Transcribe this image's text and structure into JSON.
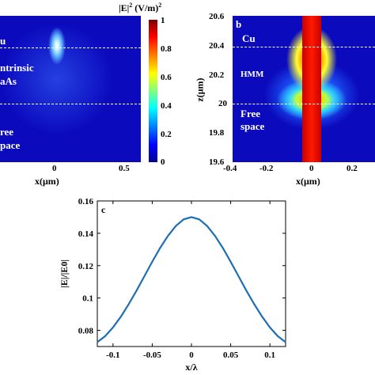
{
  "colorbar": {
    "title_main": "|E|",
    "title_sup": "2",
    "title_unit": " (V/m)",
    "title_unit_sup": "2",
    "ticks": [
      "1",
      "0.8",
      "0.6",
      "0.4",
      "0.2",
      "0"
    ],
    "colormap": "jet"
  },
  "panel_a": {
    "region_labels": [
      "u",
      "ntrinsic",
      "aAs",
      "ree",
      "pace"
    ],
    "x_ticks": [
      "0",
      "0.5"
    ],
    "xlabel": "x(μm)"
  },
  "panel_b": {
    "letter": "b",
    "region_labels": [
      "Cu",
      "HMM",
      "Free",
      "space"
    ],
    "y_ticks": [
      "20.6",
      "20.4",
      "20.2",
      "20",
      "19.8",
      "19.6"
    ],
    "x_ticks": [
      "-0.4",
      "-0.2",
      "0",
      "0.2"
    ],
    "ylabel": "z(μm)",
    "xlabel": "x(μm)"
  },
  "chart_data": [
    {
      "type": "line",
      "panel": "c",
      "xlabel": "x/λ",
      "ylabel": "|E|/|E0|",
      "xlim": [
        -0.12,
        0.12
      ],
      "ylim": [
        0.07,
        0.16
      ],
      "x_ticks": [
        -0.1,
        -0.05,
        0,
        0.05,
        0.1
      ],
      "y_ticks": [
        0.08,
        0.1,
        0.12,
        0.14,
        0.16
      ],
      "x_tick_labels": [
        "-0.1",
        "-0.05",
        "0",
        "0.05",
        "0.1"
      ],
      "y_tick_labels": [
        "0.08",
        "0.1",
        "0.12",
        "0.14",
        "0.16"
      ],
      "color": "#1f6fb5",
      "series": [
        {
          "x": [
            -0.12,
            -0.11,
            -0.1,
            -0.09,
            -0.08,
            -0.07,
            -0.06,
            -0.05,
            -0.04,
            -0.03,
            -0.02,
            -0.01,
            0,
            0.01,
            0.02,
            0.03,
            0.04,
            0.05,
            0.06,
            0.07,
            0.08,
            0.09,
            0.1,
            0.11,
            0.12
          ],
          "values": [
            0.0727,
            0.0764,
            0.0818,
            0.0885,
            0.0962,
            0.1046,
            0.1135,
            0.1224,
            0.1309,
            0.1384,
            0.1445,
            0.1486,
            0.15,
            0.1486,
            0.1445,
            0.1384,
            0.1309,
            0.1224,
            0.1135,
            0.1046,
            0.0962,
            0.0885,
            0.0818,
            0.0764,
            0.0727
          ]
        }
      ]
    }
  ]
}
